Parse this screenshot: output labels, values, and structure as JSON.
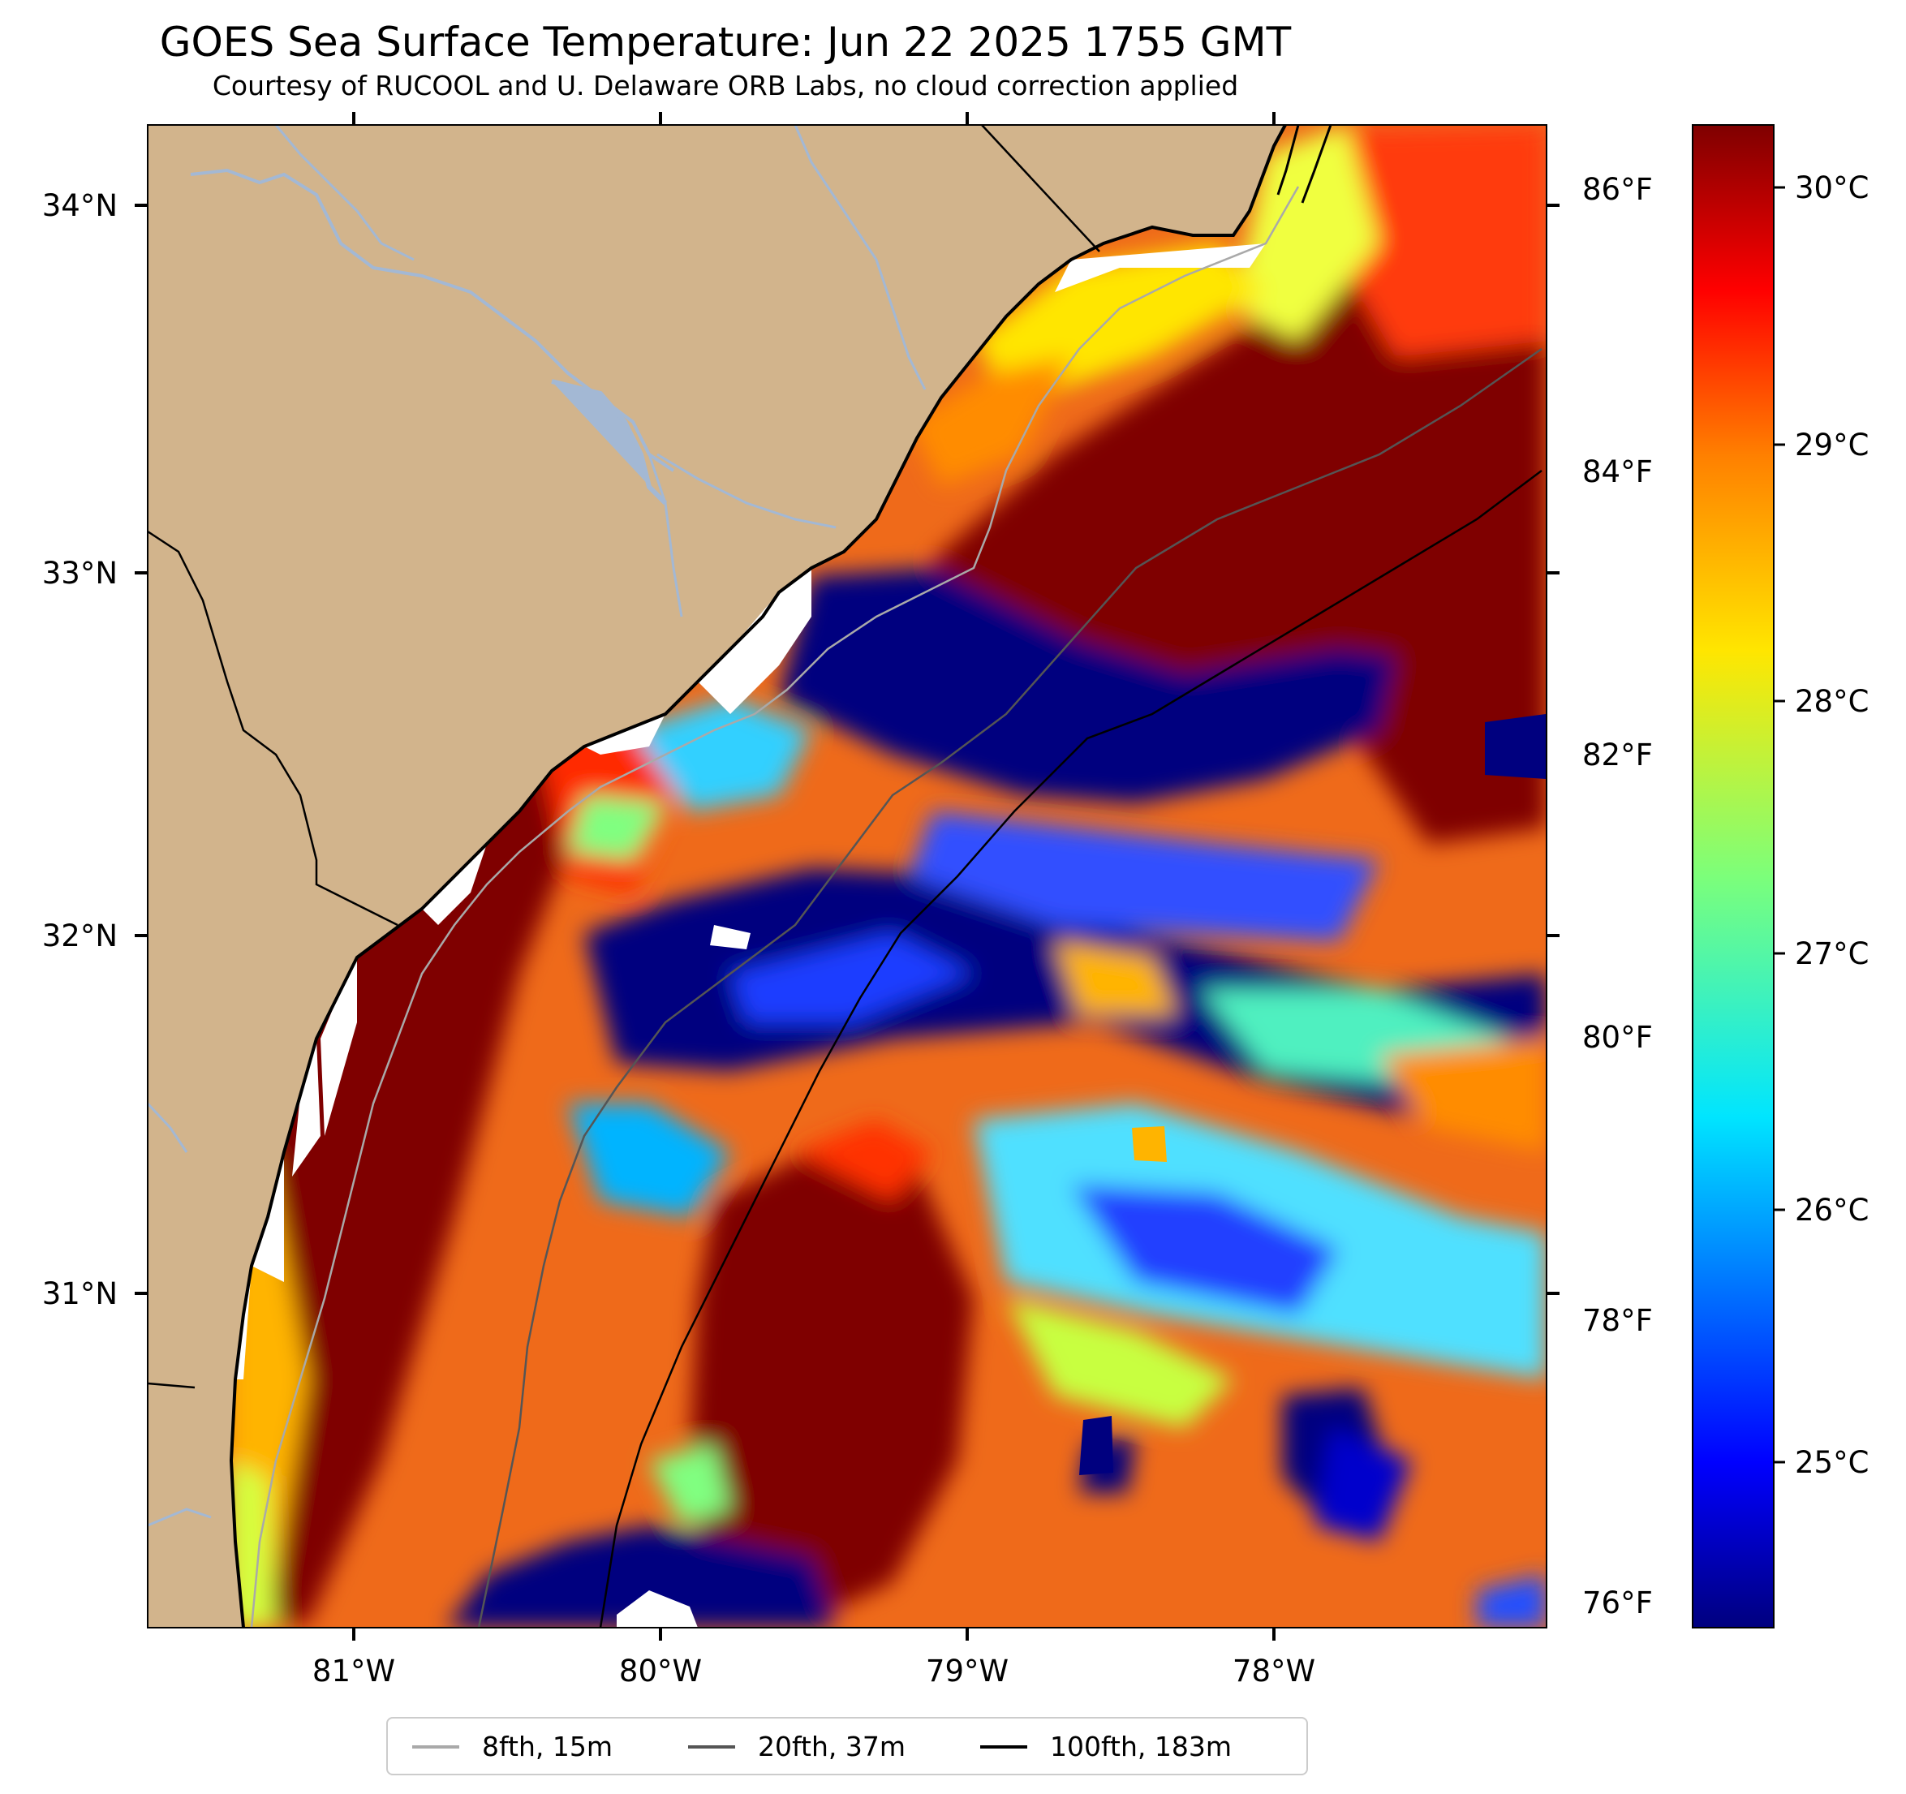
{
  "title": "GOES Sea Surface Temperature: Jun 22 2025 1755 GMT",
  "subtitle": "Courtesy of RUCOOL and U. Delaware ORB Labs, no cloud correction applied",
  "map": {
    "lon_range": [
      -81.67,
      -77.1
    ],
    "lat_range": [
      30.1,
      34.21
    ],
    "lon_ticks": [
      "81°W",
      "80°W",
      "79°W",
      "78°W"
    ],
    "lat_ticks": [
      "34°N",
      "33°N",
      "32°N",
      "31°N"
    ],
    "fahrenheit_ticks": [
      "86°F",
      "84°F",
      "82°F",
      "80°F",
      "78°F",
      "76°F"
    ],
    "land_color": "#d2b48c",
    "coast_color": "#000000",
    "river_color": "#a3b8d4"
  },
  "colorbar": {
    "range_c": [
      24.3,
      30.25
    ],
    "ticks": [
      "30°C",
      "29°C",
      "28°C",
      "27°C",
      "26°C",
      "25°C"
    ],
    "colormap": "jet"
  },
  "legend": [
    {
      "label": "8fth, 15m",
      "color": "#a9a9a9"
    },
    {
      "label": "20fth, 37m",
      "color": "#555555"
    },
    {
      "label": "100fth, 183m",
      "color": "#000000"
    }
  ]
}
